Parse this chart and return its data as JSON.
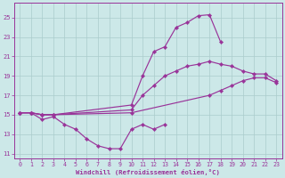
{
  "xlabel": "Windchill (Refroidissement éolien,°C)",
  "bg_color": "#cce8e8",
  "line_color": "#993399",
  "grid_color": "#aacccc",
  "xlim": [
    -0.5,
    23.5
  ],
  "ylim": [
    10.5,
    26.5
  ],
  "yticks": [
    11,
    13,
    15,
    17,
    19,
    21,
    23,
    25
  ],
  "xticks": [
    0,
    1,
    2,
    3,
    4,
    5,
    6,
    7,
    8,
    9,
    10,
    11,
    12,
    13,
    14,
    15,
    16,
    17,
    18,
    19,
    20,
    21,
    22,
    23
  ],
  "lines": [
    {
      "x": [
        0,
        1,
        2,
        3,
        10,
        11,
        12,
        13,
        14,
        15,
        16,
        17,
        18
      ],
      "y": [
        15.2,
        15.2,
        15.0,
        15.0,
        16.0,
        19.0,
        21.5,
        22.0,
        24.0,
        24.5,
        25.2,
        25.3,
        22.5
      ]
    },
    {
      "x": [
        0,
        1,
        2,
        3,
        10,
        11,
        12,
        13,
        14,
        15,
        16,
        17,
        18,
        19,
        20,
        21,
        22,
        23
      ],
      "y": [
        15.2,
        15.2,
        15.0,
        15.0,
        15.5,
        17.0,
        18.0,
        19.0,
        19.5,
        20.0,
        20.2,
        20.5,
        20.2,
        20.0,
        19.5,
        19.2,
        19.2,
        18.5
      ]
    },
    {
      "x": [
        0,
        1,
        2,
        3,
        10,
        17,
        18,
        19,
        20,
        21,
        22,
        23
      ],
      "y": [
        15.2,
        15.2,
        15.0,
        15.0,
        15.2,
        17.0,
        17.5,
        18.0,
        18.5,
        18.8,
        18.8,
        18.3
      ]
    },
    {
      "x": [
        0,
        1,
        2,
        3,
        4,
        5,
        6,
        7,
        8,
        9,
        10,
        11,
        12,
        13
      ],
      "y": [
        15.2,
        15.2,
        14.5,
        14.8,
        14.0,
        13.5,
        12.5,
        11.8,
        11.5,
        11.5,
        13.5,
        14.0,
        13.5,
        14.0
      ]
    }
  ]
}
